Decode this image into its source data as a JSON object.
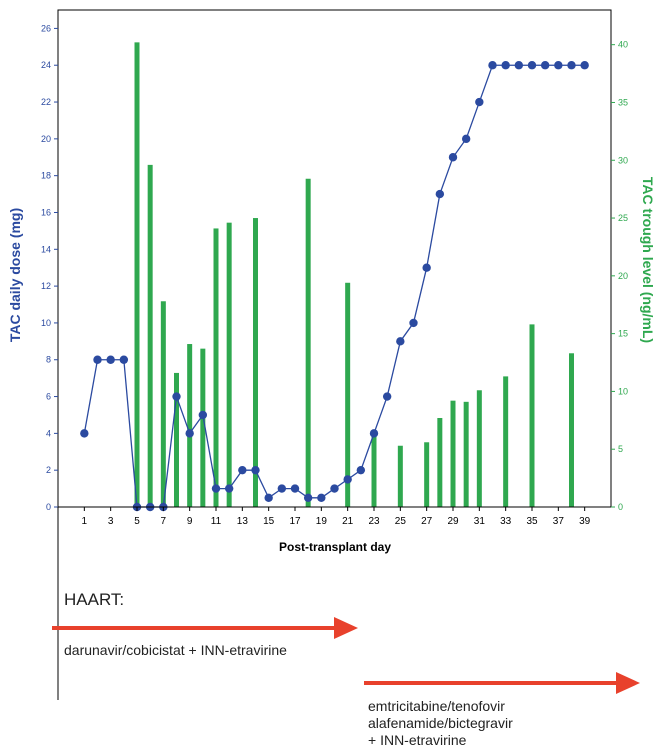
{
  "chart_data": {
    "type": "bar+line",
    "xlabel": "Post-transplant day",
    "ylabel_left": "TAC daily dose (mg)",
    "ylabel_right": "TAC trough level (ng/mL)",
    "x_ticks": [
      1,
      3,
      5,
      7,
      9,
      11,
      13,
      15,
      17,
      19,
      21,
      23,
      25,
      27,
      29,
      31,
      33,
      35,
      37,
      39
    ],
    "x_range": [
      -1,
      41
    ],
    "y_left_ticks": [
      0,
      2,
      4,
      6,
      8,
      10,
      12,
      14,
      16,
      18,
      20,
      22,
      24,
      26
    ],
    "y_left_range": [
      0,
      27
    ],
    "y_right_ticks": [
      0,
      5,
      10,
      15,
      20,
      25,
      30,
      35,
      40
    ],
    "y_right_range": [
      0,
      43
    ],
    "dose_line": {
      "color": "#2b4aa0",
      "points": [
        {
          "x": 1,
          "y": 4
        },
        {
          "x": 2,
          "y": 8
        },
        {
          "x": 3,
          "y": 8
        },
        {
          "x": 4,
          "y": 8
        },
        {
          "x": 5,
          "y": 0
        },
        {
          "x": 6,
          "y": 0
        },
        {
          "x": 7,
          "y": 0
        },
        {
          "x": 8,
          "y": 6
        },
        {
          "x": 9,
          "y": 4
        },
        {
          "x": 10,
          "y": 5
        },
        {
          "x": 11,
          "y": 1
        },
        {
          "x": 12,
          "y": 1
        },
        {
          "x": 13,
          "y": 2
        },
        {
          "x": 14,
          "y": 2
        },
        {
          "x": 15,
          "y": 0.5
        },
        {
          "x": 16,
          "y": 1
        },
        {
          "x": 17,
          "y": 1
        },
        {
          "x": 18,
          "y": 0.5
        },
        {
          "x": 19,
          "y": 0.5
        },
        {
          "x": 20,
          "y": 1
        },
        {
          "x": 21,
          "y": 1.5
        },
        {
          "x": 22,
          "y": 2
        },
        {
          "x": 23,
          "y": 4
        },
        {
          "x": 24,
          "y": 6
        },
        {
          "x": 25,
          "y": 9
        },
        {
          "x": 26,
          "y": 10
        },
        {
          "x": 27,
          "y": 13
        },
        {
          "x": 28,
          "y": 17
        },
        {
          "x": 29,
          "y": 19
        },
        {
          "x": 30,
          "y": 20
        },
        {
          "x": 31,
          "y": 22
        },
        {
          "x": 32,
          "y": 24
        },
        {
          "x": 33,
          "y": 24
        },
        {
          "x": 34,
          "y": 24
        },
        {
          "x": 35,
          "y": 24
        },
        {
          "x": 36,
          "y": 24
        },
        {
          "x": 37,
          "y": 24
        },
        {
          "x": 38,
          "y": 24
        },
        {
          "x": 39,
          "y": 24
        }
      ]
    },
    "trough_bars": {
      "color": "#2fa84f",
      "points": [
        {
          "x": 5,
          "y": 40.2
        },
        {
          "x": 6,
          "y": 29.6
        },
        {
          "x": 7,
          "y": 17.8
        },
        {
          "x": 8,
          "y": 11.6
        },
        {
          "x": 9,
          "y": 14.1
        },
        {
          "x": 10,
          "y": 13.7
        },
        {
          "x": 11,
          "y": 24.1
        },
        {
          "x": 12,
          "y": 24.6
        },
        {
          "x": 14,
          "y": 25.0
        },
        {
          "x": 18,
          "y": 28.4
        },
        {
          "x": 21,
          "y": 19.4
        },
        {
          "x": 23,
          "y": 6.3
        },
        {
          "x": 25,
          "y": 5.3
        },
        {
          "x": 27,
          "y": 5.6
        },
        {
          "x": 28,
          "y": 7.7
        },
        {
          "x": 29,
          "y": 9.2
        },
        {
          "x": 30,
          "y": 9.1
        },
        {
          "x": 31,
          "y": 10.1
        },
        {
          "x": 33,
          "y": 11.3
        },
        {
          "x": 35,
          "y": 15.8
        },
        {
          "x": 38,
          "y": 13.3
        }
      ]
    }
  },
  "haart": {
    "title": "HAART:",
    "regimen1": "darunavir/cobicistat + INN-etravirine",
    "regimen2": "emtricitabine/tenofovir\nalafenamide/bictegravir\n+ INN-etravirine",
    "arrow_color": "#e8412c"
  }
}
